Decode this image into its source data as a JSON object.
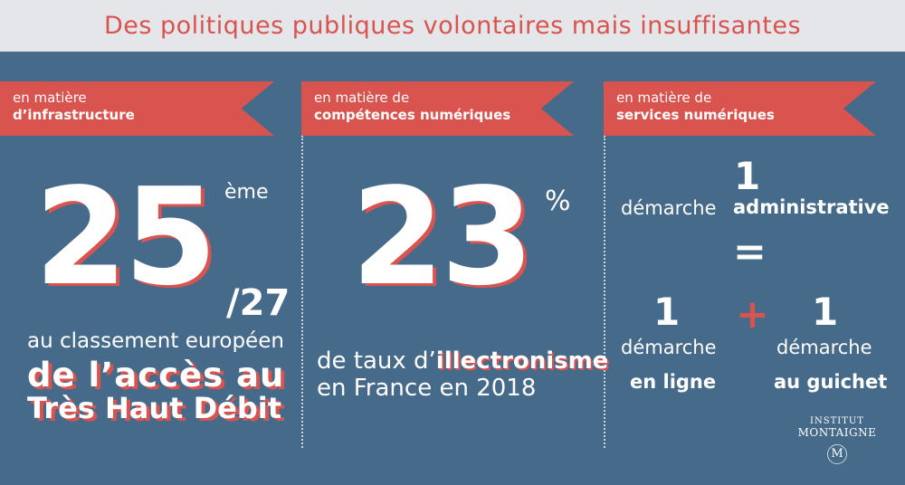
{
  "header": {
    "title": "Des politiques publiques volontaires mais insuffisantes"
  },
  "columns": [
    {
      "ribbon_line1": "en matière",
      "ribbon_line2": "d’infrastructure",
      "rank": "25",
      "rank_suffix": "ème",
      "rank_total": "/27",
      "caption": "au classement européen",
      "highlight_line1": "de l’accès au",
      "highlight_line2": "Très Haut Débit"
    },
    {
      "ribbon_line1": "en matière de",
      "ribbon_line2": "compétences numériques",
      "value": "23",
      "value_unit": "%",
      "caption_prefix": "de taux d’",
      "caption_highlight": "illectronisme",
      "caption_line2": "en France en 2018"
    },
    {
      "ribbon_line1": "en matière de",
      "ribbon_line2": "services numériques",
      "top_number": "1",
      "top_word": "démarche",
      "top_bold": "administrative",
      "equals": "=",
      "plus": "+",
      "left_number": "1",
      "left_word": "démarche",
      "left_bold": "en ligne",
      "right_number": "1",
      "right_word": "démarche",
      "right_bold": "au guichet"
    }
  ],
  "logo": {
    "line1": "INSTITUT",
    "line2": "MONTAIGNE",
    "emblem": "M"
  },
  "colors": {
    "background": "#466a89",
    "accent": "#d9534f",
    "header_bg": "#e4e6ea"
  }
}
